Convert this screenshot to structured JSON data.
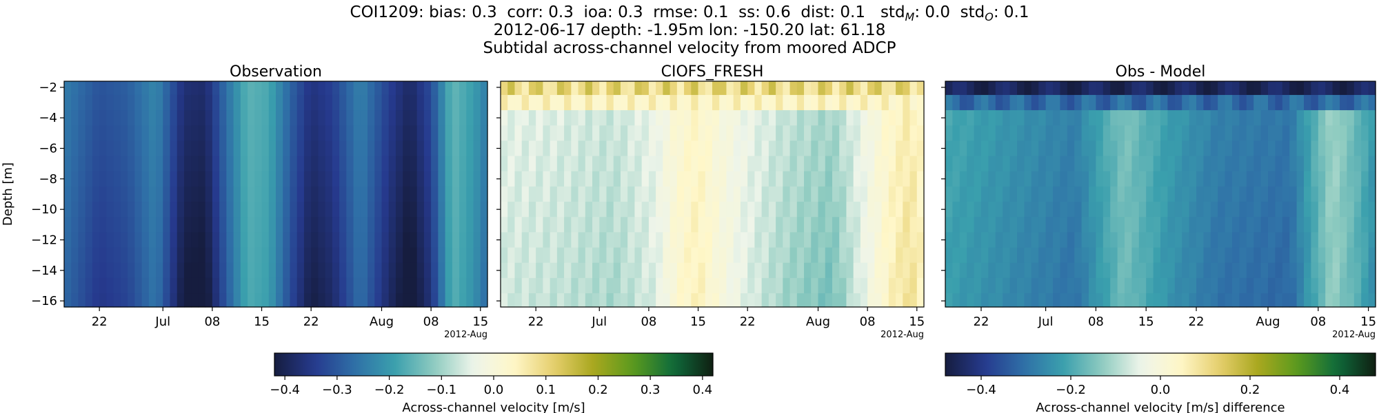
{
  "header": {
    "line1_parts": {
      "station": "COI1209:",
      "stats": "bias: 0.3  corr: 0.3  ioa: 0.3  rmse: 0.1  ss: 0.6  dist: 0.1  ",
      "std_m_base": "std",
      "std_m_sub": "M",
      "std_m_value": ": 0.0  ",
      "std_o_base": "std",
      "std_o_sub": "O",
      "std_o_value": ": 0.1"
    },
    "line2": "2012-06-17 depth: -1.95m lon: -150.20 lat: 61.18",
    "line3": "Subtidal across-channel velocity from moored ADCP"
  },
  "colors": {
    "cmap_stops": [
      "#161d3f",
      "#263a8e",
      "#2f6fa7",
      "#3a9fad",
      "#8ecbc0",
      "#eef5ea",
      "#fff7c9",
      "#e6cf6d",
      "#a8a71e",
      "#5a9a1e",
      "#0f6b3b",
      "#0f1f12"
    ]
  },
  "chart_data": [
    {
      "type": "heatmap",
      "title": "Observation",
      "ylabel": "Depth [m]",
      "xlabel": "",
      "x_start": "2012-06-17",
      "x_end": "2012-08-16",
      "ylim": [
        -16.4,
        -1.6
      ],
      "yticks": [
        -2,
        -4,
        -6,
        -8,
        -10,
        -12,
        -14,
        -16
      ],
      "ytick_labels": [
        "−2",
        "−4",
        "−6",
        "−8",
        "−10",
        "−12",
        "−14",
        "−16"
      ],
      "xticks": [
        "2012-06-22",
        "2012-07-01",
        "2012-07-08",
        "2012-07-15",
        "2012-07-22",
        "2012-08-01",
        "2012-08-08",
        "2012-08-15"
      ],
      "xtick_labels": [
        "22",
        "Jul",
        "08",
        "15",
        "22",
        "Aug",
        "08",
        "15"
      ],
      "x_offset_label": "2012-Aug",
      "depth_levels": [
        -2.0,
        -3.0,
        -4.0,
        -5.0,
        -6.0,
        -7.0,
        -8.0,
        -9.0,
        -10.0,
        -11.0,
        -12.0,
        -13.0,
        -14.0,
        -15.0,
        -16.0
      ],
      "time_profile": [
        {
          "date": "2012-06-17",
          "value": -0.28
        },
        {
          "date": "2012-06-22",
          "value": -0.35
        },
        {
          "date": "2012-06-26",
          "value": -0.33
        },
        {
          "date": "2012-06-30",
          "value": -0.26
        },
        {
          "date": "2012-07-04",
          "value": -0.42
        },
        {
          "date": "2012-07-07",
          "value": -0.43
        },
        {
          "date": "2012-07-10",
          "value": -0.3
        },
        {
          "date": "2012-07-13",
          "value": -0.18
        },
        {
          "date": "2012-07-16",
          "value": -0.2
        },
        {
          "date": "2012-07-19",
          "value": -0.32
        },
        {
          "date": "2012-07-22",
          "value": -0.41
        },
        {
          "date": "2012-07-25",
          "value": -0.38
        },
        {
          "date": "2012-07-29",
          "value": -0.27
        },
        {
          "date": "2012-08-02",
          "value": -0.38
        },
        {
          "date": "2012-08-05",
          "value": -0.44
        },
        {
          "date": "2012-08-08",
          "value": -0.36
        },
        {
          "date": "2012-08-11",
          "value": -0.17
        },
        {
          "date": "2012-08-14",
          "value": -0.22
        },
        {
          "date": "2012-08-16",
          "value": -0.28
        }
      ],
      "vrange": [
        -0.42,
        0.42
      ]
    },
    {
      "type": "heatmap",
      "title": "CIOFS_FRESH",
      "ylabel": "",
      "xlabel": "",
      "x_start": "2012-06-17",
      "x_end": "2012-08-16",
      "ylim": [
        -16.4,
        -1.6
      ],
      "yticks": [
        -2,
        -4,
        -6,
        -8,
        -10,
        -12,
        -14,
        -16
      ],
      "xticks": [
        "2012-06-22",
        "2012-07-01",
        "2012-07-08",
        "2012-07-15",
        "2012-07-22",
        "2012-08-01",
        "2012-08-08",
        "2012-08-15"
      ],
      "xtick_labels": [
        "22",
        "Jul",
        "08",
        "15",
        "22",
        "Aug",
        "08",
        "15"
      ],
      "x_offset_label": "2012-Aug",
      "depth_levels": [
        -2.0,
        -3.0,
        -4.0,
        -5.0,
        -6.0,
        -7.0,
        -8.0,
        -9.0,
        -10.0,
        -11.0,
        -12.0,
        -13.0,
        -14.0,
        -15.0,
        -16.0
      ],
      "surface_value": 0.1,
      "time_profile": [
        {
          "date": "2012-06-17",
          "value": -0.06
        },
        {
          "date": "2012-06-25",
          "value": -0.07
        },
        {
          "date": "2012-07-03",
          "value": -0.09
        },
        {
          "date": "2012-07-09",
          "value": -0.05
        },
        {
          "date": "2012-07-12",
          "value": 0.02
        },
        {
          "date": "2012-07-15",
          "value": 0.05
        },
        {
          "date": "2012-07-18",
          "value": 0.0
        },
        {
          "date": "2012-07-22",
          "value": -0.05
        },
        {
          "date": "2012-07-28",
          "value": -0.1
        },
        {
          "date": "2012-08-03",
          "value": -0.13
        },
        {
          "date": "2012-08-07",
          "value": -0.05
        },
        {
          "date": "2012-08-11",
          "value": 0.04
        },
        {
          "date": "2012-08-14",
          "value": 0.08
        },
        {
          "date": "2012-08-16",
          "value": 0.04
        }
      ],
      "vrange": [
        -0.42,
        0.42
      ]
    },
    {
      "type": "heatmap",
      "title": "Obs - Model",
      "ylabel": "",
      "xlabel": "",
      "x_start": "2012-06-17",
      "x_end": "2012-08-16",
      "ylim": [
        -16.4,
        -1.6
      ],
      "yticks": [
        -2,
        -4,
        -6,
        -8,
        -10,
        -12,
        -14,
        -16
      ],
      "xticks": [
        "2012-06-22",
        "2012-07-01",
        "2012-07-08",
        "2012-07-15",
        "2012-07-22",
        "2012-08-01",
        "2012-08-08",
        "2012-08-15"
      ],
      "xtick_labels": [
        "22",
        "Jul",
        "08",
        "15",
        "22",
        "Aug",
        "08",
        "15"
      ],
      "x_offset_label": "2012-Aug",
      "depth_levels": [
        -2.0,
        -3.0,
        -4.0,
        -5.0,
        -6.0,
        -7.0,
        -8.0,
        -9.0,
        -10.0,
        -11.0,
        -12.0,
        -13.0,
        -14.0,
        -15.0,
        -16.0
      ],
      "surface_value": -0.45,
      "time_profile": [
        {
          "date": "2012-06-17",
          "value": -0.22
        },
        {
          "date": "2012-06-26",
          "value": -0.26
        },
        {
          "date": "2012-07-05",
          "value": -0.3
        },
        {
          "date": "2012-07-12",
          "value": -0.16
        },
        {
          "date": "2012-07-18",
          "value": -0.24
        },
        {
          "date": "2012-07-25",
          "value": -0.3
        },
        {
          "date": "2012-08-04",
          "value": -0.32
        },
        {
          "date": "2012-08-10",
          "value": -0.12
        },
        {
          "date": "2012-08-14",
          "value": -0.2
        },
        {
          "date": "2012-08-16",
          "value": -0.26
        }
      ],
      "vrange": [
        -0.48,
        0.48
      ]
    }
  ],
  "colorbars": [
    {
      "label": "Across-channel velocity [m/s]",
      "vrange": [
        -0.42,
        0.42
      ],
      "ticks": [
        -0.4,
        -0.3,
        -0.2,
        -0.1,
        0.0,
        0.1,
        0.2,
        0.3,
        0.4
      ],
      "tick_labels": [
        "−0.4",
        "−0.3",
        "−0.2",
        "−0.1",
        "0.0",
        "0.1",
        "0.2",
        "0.3",
        "0.4"
      ]
    },
    {
      "label": "Across-channel velocity [m/s] difference",
      "vrange": [
        -0.48,
        0.48
      ],
      "ticks": [
        -0.4,
        -0.2,
        0.0,
        0.2,
        0.4
      ],
      "tick_labels": [
        "−0.4",
        "−0.2",
        "0.0",
        "0.2",
        "0.4"
      ]
    }
  ]
}
